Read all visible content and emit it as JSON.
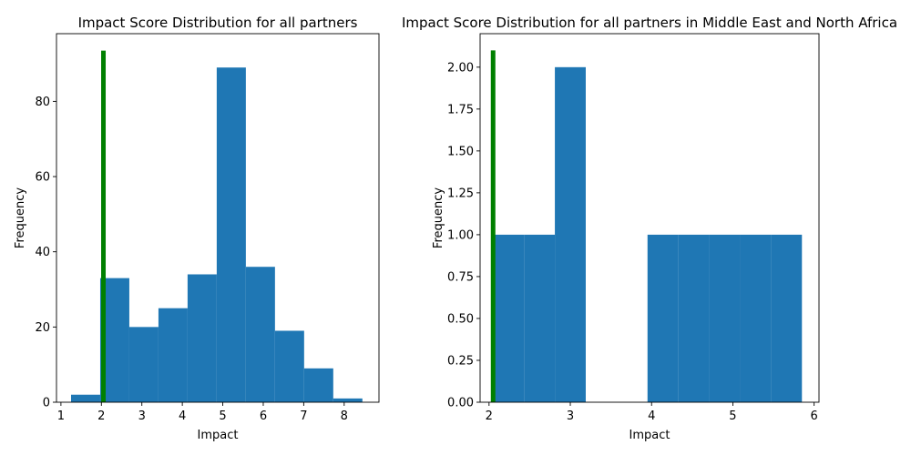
{
  "chart_data": [
    {
      "type": "bar",
      "subtype": "histogram",
      "title": "Impact Score Distribution for all partners",
      "xlabel": "Impact",
      "ylabel": "Frequency",
      "xlim": [
        0.89,
        8.86
      ],
      "ylim": [
        0,
        98
      ],
      "xticks": [
        "1",
        "2",
        "3",
        "4",
        "5",
        "6",
        "7",
        "8"
      ],
      "yticks": [
        "0",
        "20",
        "40",
        "60",
        "80"
      ],
      "bin_edges": [
        1.25,
        1.97,
        2.69,
        3.41,
        4.13,
        4.85,
        5.57,
        6.29,
        7.01,
        7.73,
        8.45
      ],
      "values": [
        2,
        33,
        20,
        25,
        34,
        89,
        36,
        19,
        9,
        1
      ],
      "bar_color": "#1f77b4",
      "marker_line": {
        "x": 2.05,
        "ymin": 0,
        "ymax": 93.5,
        "color": "#008000"
      },
      "grid": false
    },
    {
      "type": "bar",
      "subtype": "histogram",
      "title": "Impact Score Distribution for all partners in Middle East and North Africa",
      "xlabel": "Impact",
      "ylabel": "Frequency",
      "xlim": [
        1.89,
        6.06
      ],
      "ylim": [
        0,
        2.2
      ],
      "xticks": [
        "2",
        "3",
        "4",
        "5",
        "6"
      ],
      "yticks": [
        "0.00",
        "0.25",
        "0.50",
        "0.75",
        "1.00",
        "1.25",
        "1.50",
        "1.75",
        "2.00"
      ],
      "bin_edges": [
        2.05,
        2.43,
        2.81,
        3.19,
        3.57,
        3.95,
        4.33,
        4.71,
        5.09,
        5.47,
        5.85
      ],
      "values": [
        1,
        1,
        2,
        0,
        0,
        1,
        1,
        1,
        1,
        1
      ],
      "bar_color": "#1f77b4",
      "marker_line": {
        "x": 2.05,
        "ymin": 0,
        "ymax": 2.1,
        "color": "#008000"
      },
      "grid": false
    }
  ]
}
